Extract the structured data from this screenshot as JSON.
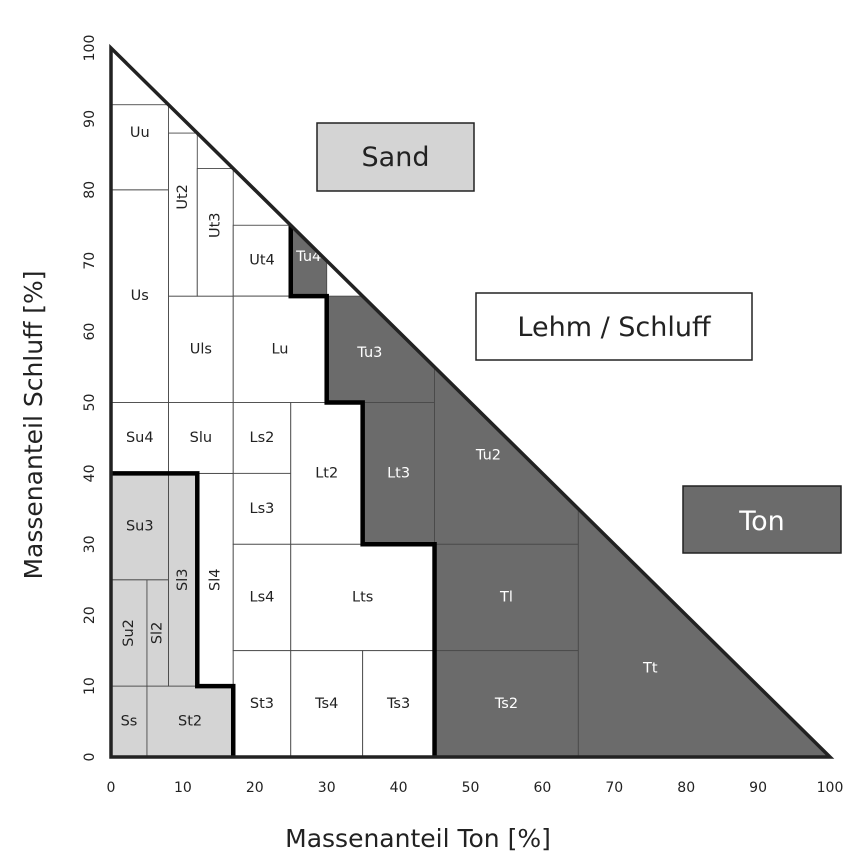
{
  "xlabel": "Massenanteil Ton [%]",
  "ylabel": "Massenanteil Schluff [%]",
  "x_ticks": [
    "0",
    "10",
    "20",
    "30",
    "40",
    "50",
    "60",
    "70",
    "80",
    "90",
    "100"
  ],
  "y_ticks": [
    "0",
    "10",
    "20",
    "30",
    "40",
    "50",
    "60",
    "70",
    "80",
    "90",
    "100"
  ],
  "groups": {
    "sand": {
      "label": "Sand",
      "fill": "#d4d4d4",
      "text": "#222222"
    },
    "lehm": {
      "label": "Lehm / Schluff",
      "fill": "#ffffff",
      "text": "#222222"
    },
    "ton": {
      "label": "Ton",
      "fill": "#6b6b6b",
      "text": "#ffffff"
    }
  },
  "classes": [
    {
      "name": "Ss",
      "group": "sand",
      "clay": [
        0,
        5
      ],
      "silt": [
        0,
        10
      ]
    },
    {
      "name": "St2",
      "group": "sand",
      "clay": [
        5,
        17
      ],
      "silt": [
        0,
        10
      ]
    },
    {
      "name": "Su2",
      "group": "sand",
      "clay": [
        0,
        5
      ],
      "silt": [
        10,
        25
      ]
    },
    {
      "name": "Sl2",
      "group": "sand",
      "clay": [
        5,
        8
      ],
      "silt": [
        10,
        25
      ]
    },
    {
      "name": "Su3",
      "group": "sand",
      "clay": [
        0,
        8
      ],
      "silt": [
        25,
        40
      ]
    },
    {
      "name": "Sl3",
      "group": "sand",
      "clay": [
        8,
        12
      ],
      "silt": [
        10,
        40
      ]
    },
    {
      "name": "Sl4",
      "group": "lehm",
      "clay": [
        12,
        17
      ],
      "silt": [
        10,
        40
      ]
    },
    {
      "name": "Su4",
      "group": "lehm",
      "clay": [
        0,
        8
      ],
      "silt": [
        40,
        50
      ]
    },
    {
      "name": "Slu",
      "group": "lehm",
      "clay": [
        8,
        17
      ],
      "silt": [
        40,
        50
      ]
    },
    {
      "name": "Us",
      "group": "lehm",
      "clay": [
        0,
        8
      ],
      "silt": [
        50,
        80
      ]
    },
    {
      "name": "Uu",
      "group": "lehm",
      "clay": [
        0,
        8
      ],
      "silt": [
        80,
        92
      ]
    },
    {
      "name": "Uls",
      "group": "lehm",
      "clay": [
        8,
        17
      ],
      "silt": [
        50,
        65
      ]
    },
    {
      "name": "Ut2",
      "group": "lehm",
      "clay": [
        8,
        12
      ],
      "silt": [
        65,
        88
      ]
    },
    {
      "name": "Ut3",
      "group": "lehm",
      "clay": [
        12,
        17
      ],
      "silt": [
        65,
        83
      ]
    },
    {
      "name": "Ut4",
      "group": "lehm",
      "clay": [
        17,
        25
      ],
      "silt": [
        65,
        75
      ]
    },
    {
      "name": "Lu",
      "group": "lehm",
      "clay": [
        17,
        30
      ],
      "silt": [
        50,
        65
      ]
    },
    {
      "name": "Ls2",
      "group": "lehm",
      "clay": [
        17,
        25
      ],
      "silt": [
        40,
        50
      ]
    },
    {
      "name": "Ls3",
      "group": "lehm",
      "clay": [
        17,
        25
      ],
      "silt": [
        30,
        40
      ]
    },
    {
      "name": "Ls4",
      "group": "lehm",
      "clay": [
        17,
        25
      ],
      "silt": [
        15,
        30
      ]
    },
    {
      "name": "Lt2",
      "group": "lehm",
      "clay": [
        25,
        35
      ],
      "silt": [
        30,
        50
      ]
    },
    {
      "name": "Lts",
      "group": "lehm",
      "clay": [
        25,
        45
      ],
      "silt": [
        15,
        30
      ]
    },
    {
      "name": "St3",
      "group": "lehm",
      "clay": [
        17,
        25
      ],
      "silt": [
        0,
        15
      ]
    },
    {
      "name": "Ts4",
      "group": "lehm",
      "clay": [
        25,
        35
      ],
      "silt": [
        0,
        15
      ]
    },
    {
      "name": "Ts3",
      "group": "lehm",
      "clay": [
        35,
        45
      ],
      "silt": [
        0,
        15
      ]
    },
    {
      "name": "Tu4",
      "group": "ton",
      "clay": [
        25,
        30
      ],
      "silt": [
        65,
        75
      ]
    },
    {
      "name": "Tu3",
      "group": "ton",
      "clay": [
        30,
        45
      ],
      "silt": [
        50,
        65
      ]
    },
    {
      "name": "Lt3",
      "group": "ton",
      "clay": [
        35,
        45
      ],
      "silt": [
        30,
        50
      ]
    },
    {
      "name": "Tu2",
      "group": "ton",
      "clay": [
        45,
        65
      ],
      "silt": [
        30,
        55
      ]
    },
    {
      "name": "Tl",
      "group": "ton",
      "clay": [
        45,
        65
      ],
      "silt": [
        15,
        30
      ]
    },
    {
      "name": "Ts2",
      "group": "ton",
      "clay": [
        45,
        65
      ],
      "silt": [
        0,
        15
      ]
    },
    {
      "name": "Tt",
      "group": "ton",
      "clay": [
        65,
        100
      ],
      "silt": [
        0,
        35
      ]
    }
  ]
}
